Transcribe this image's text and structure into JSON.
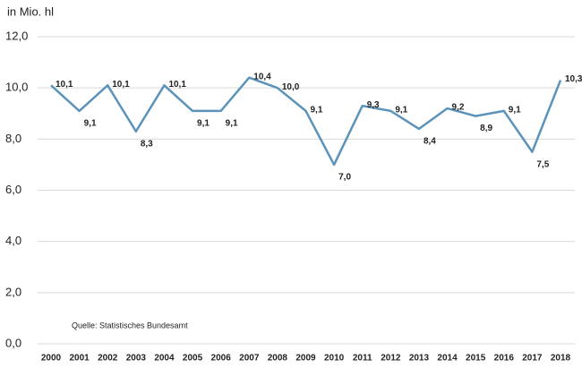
{
  "chart_data": {
    "type": "line",
    "y_label": "in Mio. hl",
    "source": "Quelle: Statistisches Bundesamt",
    "categories": [
      "2000",
      "2001",
      "2002",
      "2003",
      "2004",
      "2005",
      "2006",
      "2007",
      "2008",
      "2009",
      "2010",
      "2011",
      "2012",
      "2013",
      "2014",
      "2015",
      "2016",
      "2017",
      "2018"
    ],
    "values": [
      10.1,
      9.1,
      10.1,
      8.3,
      10.1,
      9.1,
      9.1,
      10.4,
      10.0,
      9.1,
      7.0,
      9.3,
      9.1,
      8.4,
      9.2,
      8.9,
      9.1,
      7.5,
      10.3
    ],
    "value_labels": [
      "10,1",
      "9,1",
      "10,1",
      "8,3",
      "10,1",
      "9,1",
      "9,1",
      "10,4",
      "10,0",
      "9,1",
      "7,0",
      "9,3",
      "9,1",
      "8,4",
      "9,2",
      "8,9",
      "9,1",
      "7,5",
      "10,3"
    ],
    "color": "#5b93ba",
    "ylim": [
      0,
      12
    ],
    "yticks": [
      {
        "value": 0,
        "label": "0,0"
      },
      {
        "value": 2,
        "label": "2,0"
      },
      {
        "value": 4,
        "label": "4,0"
      },
      {
        "value": 6,
        "label": "6,0"
      },
      {
        "value": 8,
        "label": "8,0"
      },
      {
        "value": 10,
        "label": "10,0"
      },
      {
        "value": 12,
        "label": "12,0"
      }
    ],
    "grid": true
  }
}
